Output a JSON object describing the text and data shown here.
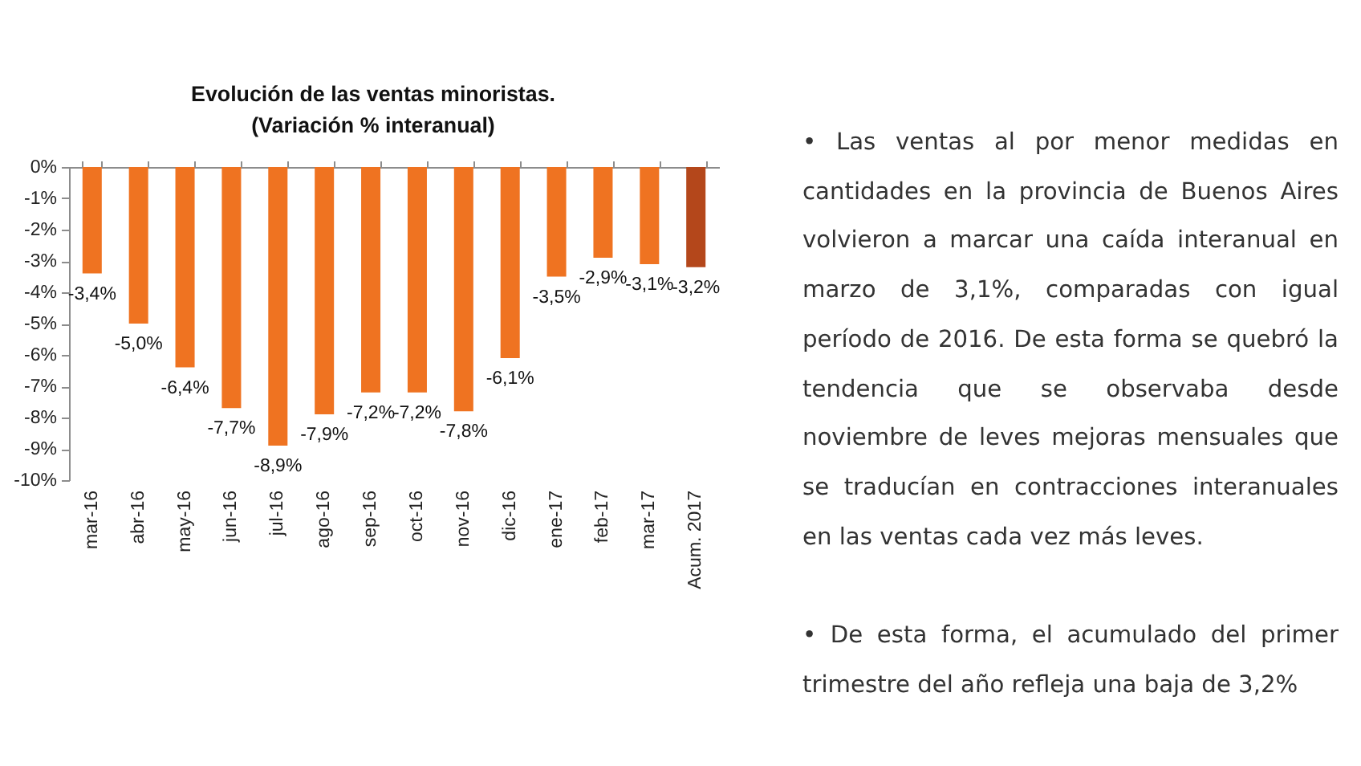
{
  "chart_data": {
    "type": "bar",
    "title": "Evolución de las ventas minoristas.",
    "subtitle": "(Variación % interanual)",
    "categories": [
      "mar-16",
      "abr-16",
      "may-16",
      "jun-16",
      "jul-16",
      "ago-16",
      "sep-16",
      "oct-16",
      "nov-16",
      "dic-16",
      "ene-17",
      "feb-17",
      "mar-17",
      "Acum. 2017"
    ],
    "values": [
      -3.4,
      -5.0,
      -6.4,
      -7.7,
      -8.9,
      -7.9,
      -7.2,
      -7.2,
      -7.8,
      -6.1,
      -3.5,
      -2.9,
      -3.1,
      -3.2
    ],
    "colors": [
      "#ef7321",
      "#ef7321",
      "#ef7321",
      "#ef7321",
      "#ef7321",
      "#ef7321",
      "#ef7321",
      "#ef7321",
      "#ef7321",
      "#ef7321",
      "#ef7321",
      "#ef7321",
      "#ef7321",
      "#b4471b"
    ],
    "value_labels": [
      "-3,4%",
      "-5,0%",
      "-6,4%",
      "-7,7%",
      "-8,9%",
      "-7,9%",
      "-7,2%",
      "-7,2%",
      "-7,8%",
      "-6,1%",
      "-3,5%",
      "-2,9%",
      "-3,1%",
      "-3,2%"
    ],
    "ylim": [
      -10,
      0
    ],
    "yticks": [
      {
        "value": 0,
        "label": "0%"
      },
      {
        "value": -1,
        "label": "-1%"
      },
      {
        "value": -2,
        "label": "-2%"
      },
      {
        "value": -3,
        "label": "-3%"
      },
      {
        "value": -4,
        "label": "-4%"
      },
      {
        "value": -5,
        "label": "-5%"
      },
      {
        "value": -6,
        "label": "-6%"
      },
      {
        "value": -7,
        "label": "-7%"
      },
      {
        "value": -8,
        "label": "-8%"
      },
      {
        "value": -9,
        "label": "-9%"
      },
      {
        "value": -10,
        "label": "-10%"
      }
    ],
    "grid": false,
    "legend": false,
    "annotations": [
      "• Las ventas al por menor medidas en cantidades en la provincia de Buenos Aires volvieron a marcar una caída interanual en marzo de 3,1%, comparadas con igual período de 2016. De esta forma se quebró la tendencia que se observaba desde noviembre de leves mejoras mensuales que se traducían en contracciones interanuales en las ventas cada vez más leves.",
      "• De esta forma, el acumulado del primer trimestre del año refleja una baja de 3,2%"
    ]
  }
}
